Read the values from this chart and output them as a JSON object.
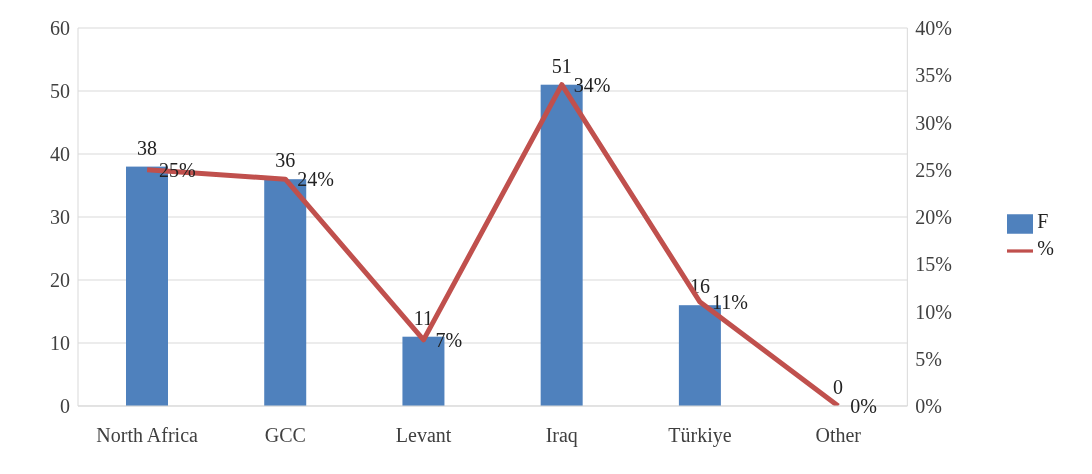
{
  "chart_data": {
    "type": "bar",
    "categories": [
      "North Africa",
      "GCC",
      "Levant",
      "Iraq",
      "Türkiye",
      "Other"
    ],
    "series": [
      {
        "name": "F",
        "color": "#4f81bd",
        "values": [
          38,
          36,
          11,
          51,
          16,
          0
        ],
        "data_labels": true
      },
      {
        "name": "%",
        "type": "line",
        "axis": "y2",
        "color": "#c0504d",
        "values": [
          25,
          24,
          7,
          34,
          11,
          0
        ],
        "value_labels": [
          "25%",
          "24%",
          "7%",
          "34%",
          "11%",
          "0%"
        ],
        "marker": "none",
        "line_style": "solid"
      }
    ],
    "ylim": [
      0,
      60
    ],
    "yticks": [
      0,
      10,
      20,
      30,
      40,
      50,
      60
    ],
    "y2lim": [
      0,
      40
    ],
    "y2ticks": [
      {
        "value": 0,
        "label": "0%"
      },
      {
        "value": 5,
        "label": "5%"
      },
      {
        "value": 10,
        "label": "10%"
      },
      {
        "value": 15,
        "label": "15%"
      },
      {
        "value": 20,
        "label": "20%"
      },
      {
        "value": 25,
        "label": "25%"
      },
      {
        "value": 30,
        "label": "30%"
      },
      {
        "value": 35,
        "label": "35%"
      },
      {
        "value": 40,
        "label": "40%"
      }
    ],
    "grid": "y",
    "legend": "right"
  }
}
